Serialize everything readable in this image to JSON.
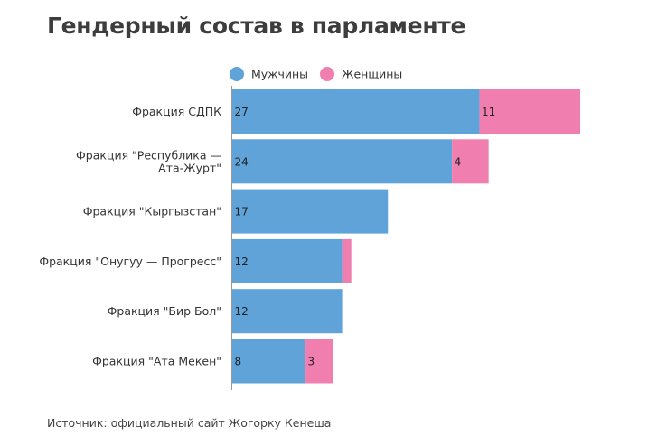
{
  "chart_data": {
    "type": "bar",
    "orientation": "horizontal",
    "stacked": true,
    "title": "Гендерный состав в парламенте",
    "categories": [
      [
        "Фракция СДПК"
      ],
      [
        "Фракция \"Республика —",
        "Ата-Журт\""
      ],
      [
        "Фракция \"Кыргызстан\""
      ],
      [
        "Фракция \"Онугуу — Прогресс\""
      ],
      [
        "Фракция \"Бир Бол\""
      ],
      [
        "Фракция \"Ата Мекен\""
      ]
    ],
    "series": [
      {
        "name": "Мужчины",
        "color": "#5fa3d8",
        "values": [
          27,
          24,
          17,
          12,
          12,
          8
        ],
        "labels": [
          "27",
          "24",
          "17",
          "12",
          "12",
          "8"
        ]
      },
      {
        "name": "Женщины",
        "color": "#f07fb0",
        "values": [
          11,
          4,
          0,
          1,
          0,
          3
        ],
        "labels": [
          "11",
          "4",
          "",
          "",
          "",
          "3"
        ]
      }
    ],
    "xlim": [
      0,
      38
    ],
    "grid": false,
    "legend_position": "top"
  },
  "source": "Источник:  официальный сайт Жогорку Кенеша"
}
